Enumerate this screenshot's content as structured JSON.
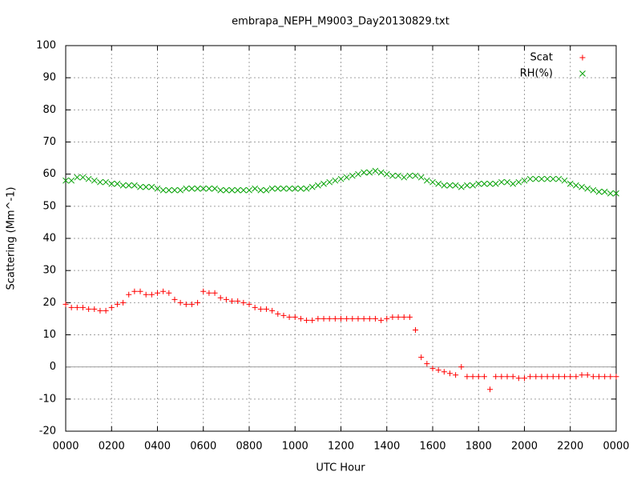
{
  "chart_data": {
    "type": "scatter",
    "title": "embrapa_NEPH_M9003_Day20130829.txt",
    "xlabel": "UTC Hour",
    "ylabel": "Scattering (Mm^-1)",
    "x": [
      0,
      0.25,
      0.5,
      0.75,
      1,
      1.25,
      1.5,
      1.75,
      2,
      2.25,
      2.5,
      2.75,
      3,
      3.25,
      3.5,
      3.75,
      4,
      4.25,
      4.5,
      4.75,
      5,
      5.25,
      5.5,
      5.75,
      6,
      6.25,
      6.5,
      6.75,
      7,
      7.25,
      7.5,
      7.75,
      8,
      8.25,
      8.5,
      8.75,
      9,
      9.25,
      9.5,
      9.75,
      10,
      10.25,
      10.5,
      10.75,
      11,
      11.25,
      11.5,
      11.75,
      12,
      12.25,
      12.5,
      12.75,
      13,
      13.25,
      13.5,
      13.75,
      14,
      14.25,
      14.5,
      14.75,
      15,
      15.25,
      15.5,
      15.75,
      16,
      16.25,
      16.5,
      16.75,
      17,
      17.25,
      17.5,
      17.75,
      18,
      18.25,
      18.5,
      18.75,
      19,
      19.25,
      19.5,
      19.75,
      20,
      20.25,
      20.5,
      20.75,
      21,
      21.25,
      21.5,
      21.75,
      22,
      22.25,
      22.5,
      22.75,
      23,
      23.25,
      23.5,
      23.75,
      24
    ],
    "series": [
      {
        "name": "Scat",
        "color": "#ff0000",
        "marker": "plus",
        "values": [
          19.5,
          18.5,
          18.5,
          18.5,
          18,
          18,
          17.5,
          17.5,
          18.5,
          19.5,
          20,
          22.5,
          23.5,
          23.5,
          22.5,
          22.5,
          23,
          23.5,
          23,
          21,
          20,
          19.5,
          19.5,
          20,
          23.5,
          23,
          23,
          21.5,
          21,
          20.5,
          20.5,
          20,
          19.5,
          18.5,
          18,
          18,
          17.5,
          16.5,
          16,
          15.5,
          15.5,
          15,
          14.5,
          14.5,
          15,
          15,
          15,
          15,
          15,
          15,
          15,
          15,
          15,
          15,
          15,
          14.5,
          15,
          15.5,
          15.5,
          15.5,
          15.5,
          11.5,
          3,
          1,
          -0.5,
          -1,
          -1.5,
          -2,
          -2.5,
          0,
          -3,
          -3,
          -3,
          -3,
          -7,
          -3,
          -3,
          -3,
          -3,
          -3.5,
          -3.5,
          -3,
          -3,
          -3,
          -3,
          -3,
          -3,
          -3,
          -3,
          -3,
          -2.5,
          -2.5,
          -3,
          -3,
          -3,
          -3,
          -3
        ]
      },
      {
        "name": "RH(%)",
        "color": "#00a000",
        "marker": "cross",
        "values": [
          58,
          58,
          59,
          59,
          58.5,
          58,
          57.5,
          57.5,
          57,
          57,
          56.5,
          56.5,
          56.5,
          56,
          56,
          56,
          55.5,
          55,
          55,
          55,
          55,
          55.5,
          55.5,
          55.5,
          55.5,
          55.5,
          55.5,
          55,
          55,
          55,
          55,
          55,
          55,
          55.5,
          55,
          55,
          55.5,
          55.5,
          55.5,
          55.5,
          55.5,
          55.5,
          55.5,
          56,
          56.5,
          57,
          57.5,
          58,
          58.5,
          59,
          59.5,
          60,
          60.5,
          60.5,
          61,
          60.5,
          60,
          59.5,
          59.5,
          59,
          59.5,
          59.5,
          59,
          58,
          57.5,
          57,
          56.5,
          56.5,
          56.5,
          56,
          56.5,
          56.5,
          57,
          57,
          57,
          57,
          57.5,
          57.5,
          57,
          57.5,
          58,
          58.5,
          58.5,
          58.5,
          58.5,
          58.5,
          58.5,
          58,
          57,
          56.5,
          56,
          55.5,
          55,
          54.5,
          54.5,
          54,
          54
        ]
      }
    ],
    "xlim": [
      0,
      24
    ],
    "xticks": [
      {
        "value": 0,
        "label": "0000"
      },
      {
        "value": 2,
        "label": "0200"
      },
      {
        "value": 4,
        "label": "0400"
      },
      {
        "value": 6,
        "label": "0600"
      },
      {
        "value": 8,
        "label": "0800"
      },
      {
        "value": 10,
        "label": "1000"
      },
      {
        "value": 12,
        "label": "1200"
      },
      {
        "value": 14,
        "label": "1400"
      },
      {
        "value": 16,
        "label": "1600"
      },
      {
        "value": 18,
        "label": "1800"
      },
      {
        "value": 20,
        "label": "2000"
      },
      {
        "value": 22,
        "label": "2200"
      },
      {
        "value": 24,
        "label": "0000"
      }
    ],
    "ylim": [
      -20,
      100
    ],
    "yticks": [
      -20,
      -10,
      0,
      10,
      20,
      30,
      40,
      50,
      60,
      70,
      80,
      90,
      100
    ],
    "grid": true,
    "zeroaxis": true,
    "legend": "top-right"
  }
}
